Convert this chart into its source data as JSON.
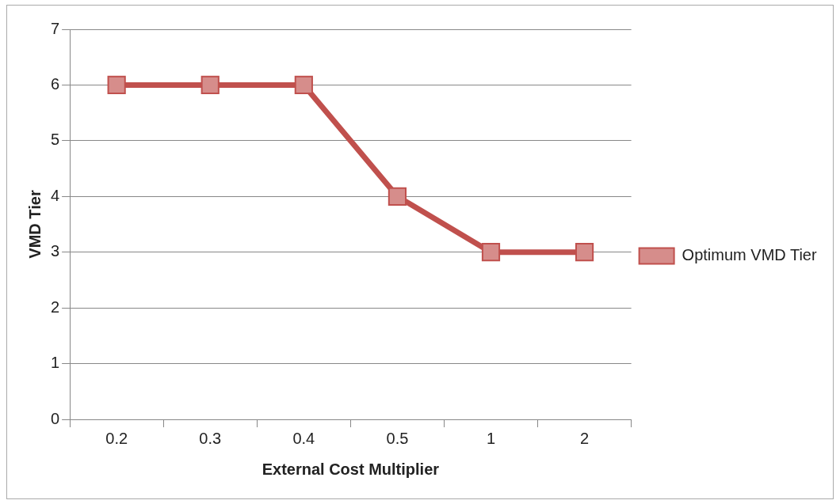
{
  "chart_data": {
    "type": "line",
    "xlabel": "External Cost Multiplier",
    "ylabel": "VMD Tier",
    "categories": [
      "0.2",
      "0.3",
      "0.4",
      "0.5",
      "1",
      "2"
    ],
    "series": [
      {
        "name": "Optimum VMD Tier",
        "color": "#c0504d",
        "values": [
          6,
          6,
          6,
          4,
          3,
          3
        ]
      }
    ],
    "ylim": [
      0,
      7
    ],
    "yticks": [
      0,
      1,
      2,
      3,
      4,
      5,
      6,
      7
    ],
    "grid": "y",
    "legend": "right",
    "marker": "square",
    "line_style": "solid"
  }
}
